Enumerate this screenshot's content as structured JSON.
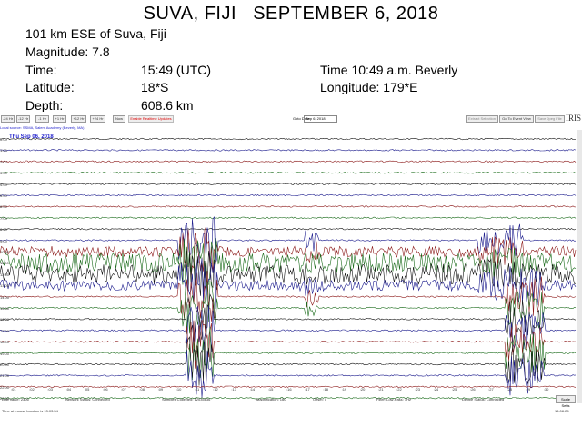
{
  "header": {
    "title": "SUVA, FIJI   SEPTEMBER 6, 2018",
    "location": "101 km ESE of Suva, Fiji",
    "magnitude": "Magnitude: 7.8",
    "time_label": "Time:",
    "time_value": "15:49 (UTC)",
    "local_time": "Time 10:49 a.m. Beverly",
    "latitude_label": "Latitude:",
    "latitude_value": "18*S",
    "longitude": "Longitude: 179*E",
    "depth_label": "Depth:",
    "depth_value": "608.6 km"
  },
  "toolbar": {
    "buttons": [
      "-24 Hr",
      "-12 Hr",
      "-1 Hr",
      "+1 Hr",
      "+12 Hr",
      "+24 Hr",
      "Now"
    ],
    "disable_button": "Enable Realtime Updates",
    "go_to_date_label": "Goto Date:",
    "go_to_date_value": "Sep 6, 2018",
    "extract_button": "Extract Selection",
    "event_view_button": "Go To Event View",
    "save_button": "Save Jpeg File",
    "logo": "IRIS"
  },
  "plot": {
    "source": "Local source: SSMA, Salem Academy (Beverly, MA)",
    "date_label": "Thu Sep 06, 2018",
    "row_labels": [
      "0:00",
      "1:00",
      "2:00",
      "3:00",
      "4:00",
      "5:00",
      "6:00",
      "7:00",
      "8:00",
      "9:00",
      "10:00",
      "11:00",
      "12:00",
      "13:00",
      "14:00",
      "15:00",
      "16:00",
      "17:00",
      "18:00",
      "19:00",
      "20:00",
      "21:00",
      "22:00",
      "23:00"
    ],
    "x_ticks": [
      ":01",
      ":02",
      ":03",
      ":04",
      ":05",
      ":06",
      ":07",
      ":08",
      ":09",
      ":10",
      ":11",
      ":12",
      ":13",
      ":14",
      ":15",
      ":16",
      ":17",
      ":18",
      ":19",
      ":20",
      ":21",
      ":22",
      ":23",
      ":24",
      ":25",
      ":26",
      ":27",
      ":28",
      ":29",
      ":30"
    ],
    "trace_colors": [
      "#111111",
      "#1a1a8c",
      "#8c1a1a",
      "#1a6b1a"
    ]
  },
  "status": {
    "last_value": "Last Value: 2306",
    "network": "Network Status: Connected",
    "samples": "Samples Collected: 12035636",
    "magnification": "Magnification: 160",
    "offset": "Offset: 0",
    "filter": "Filter: Low-Pass: 1Hz",
    "device": "Device Status: Connected",
    "scale_button": "Scale Setts"
  },
  "footer": {
    "mouse_location": "Time at mouse location is 13:03:54",
    "clock": "16:08:25"
  }
}
